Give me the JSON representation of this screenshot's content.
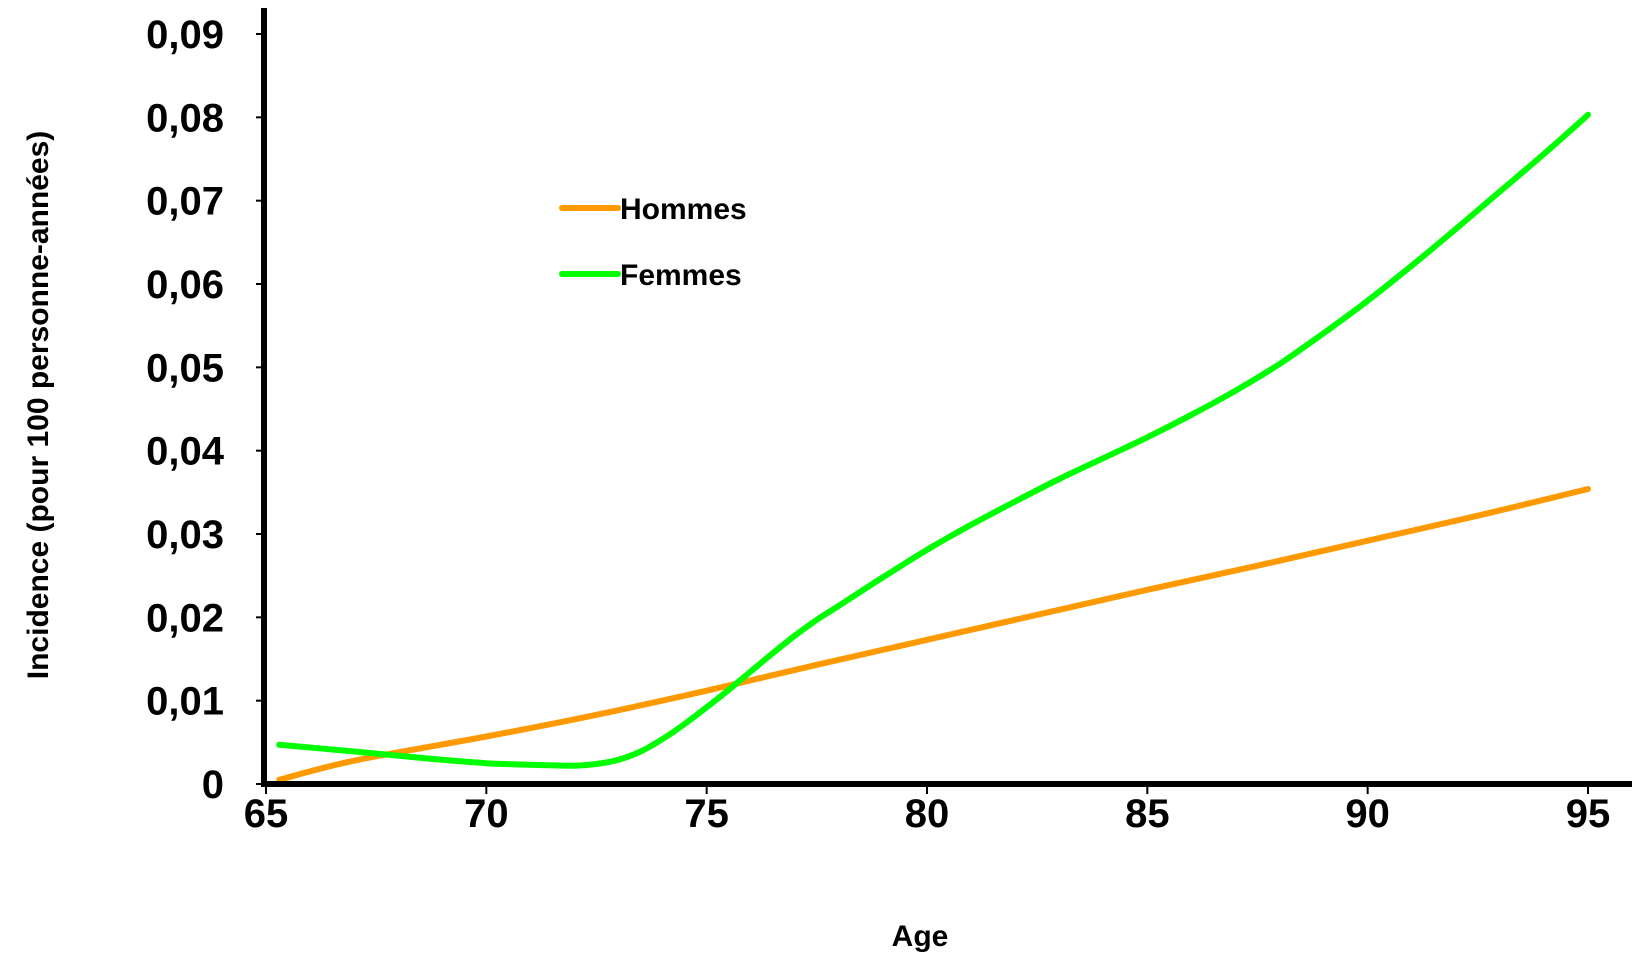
{
  "chart_data": {
    "type": "line",
    "title": "",
    "xlabel": "Age",
    "ylabel": "Incidence (pour 100 personne-années)",
    "xlim": [
      65,
      95
    ],
    "ylim": [
      0,
      0.09
    ],
    "x_ticks": [
      65,
      70,
      75,
      80,
      85,
      90,
      95
    ],
    "x_tick_labels": [
      "65",
      "70",
      "75",
      "80",
      "85",
      "90",
      "95"
    ],
    "y_ticks": [
      0,
      0.01,
      0.02,
      0.03,
      0.04,
      0.05,
      0.06,
      0.07,
      0.08,
      0.09
    ],
    "y_tick_labels": [
      "0",
      "0,01",
      "0,02",
      "0,03",
      "0,04",
      "0,05",
      "0,06",
      "0,07",
      "0,08",
      "0,09"
    ],
    "grid": false,
    "legend_position": "top-left",
    "series": [
      {
        "name": "Hommes",
        "color": "#ff9900",
        "x": [
          65.3,
          67,
          70,
          72.5,
          75,
          77.5,
          80,
          82.5,
          85,
          87.5,
          90,
          92.5,
          95
        ],
        "y": [
          0.0005,
          0.0028,
          0.0057,
          0.0083,
          0.0112,
          0.0143,
          0.0173,
          0.0203,
          0.0233,
          0.0262,
          0.0292,
          0.0322,
          0.0354
        ]
      },
      {
        "name": "Femmes",
        "color": "#00ff00",
        "x": [
          65.3,
          67,
          68,
          69,
          70,
          71,
          72,
          72.5,
          73,
          73.5,
          74,
          74.5,
          75,
          75.5,
          76,
          76.5,
          77,
          77.5,
          78,
          79,
          80,
          81,
          82,
          83,
          84,
          85,
          86,
          87,
          88,
          89,
          90,
          91,
          92,
          93,
          94,
          95
        ],
        "y": [
          0.0047,
          0.0039,
          0.0034,
          0.0029,
          0.0025,
          0.0023,
          0.0022,
          0.0024,
          0.0029,
          0.0039,
          0.0054,
          0.0072,
          0.0092,
          0.0113,
          0.0135,
          0.0157,
          0.0178,
          0.0197,
          0.0214,
          0.0248,
          0.0281,
          0.0311,
          0.0339,
          0.0366,
          0.0391,
          0.0416,
          0.0443,
          0.0472,
          0.0504,
          0.0541,
          0.058,
          0.0622,
          0.0666,
          0.0711,
          0.0756,
          0.0803
        ]
      }
    ]
  }
}
